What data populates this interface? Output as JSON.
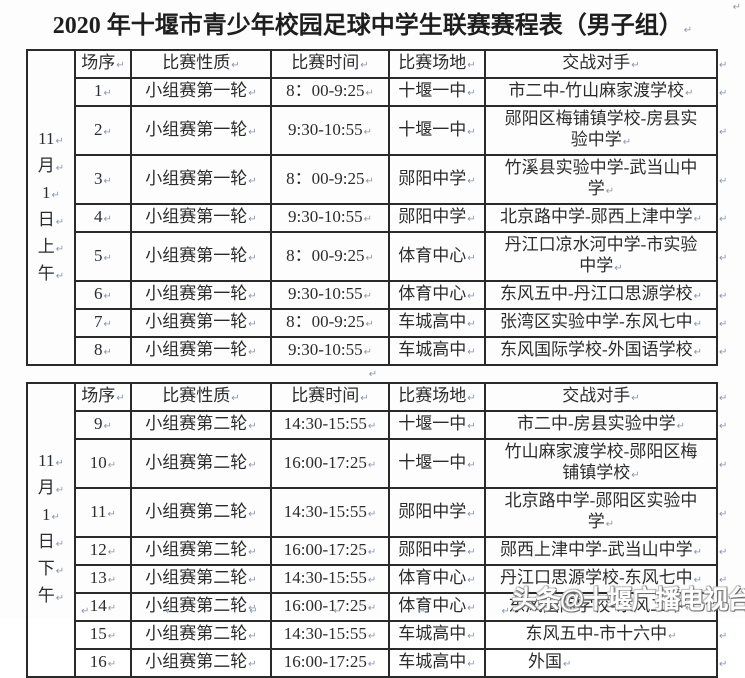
{
  "title": "2020 年十堰市青少年校园足球中学生联赛赛程表（男子组）",
  "marks": {
    "ret": "↵"
  },
  "columns": [
    "场序",
    "比赛性质",
    "比赛时间",
    "比赛场地",
    "交战对手"
  ],
  "watermark": "头条@十堰广播电视台",
  "tables": [
    {
      "name": "morning",
      "date_label_chars": [
        "11",
        "月",
        "1",
        "日",
        "上",
        "午"
      ],
      "rows": [
        {
          "no": "1",
          "nature": "小组赛第一轮",
          "time": "8：00-9:25",
          "venue": "十堰一中",
          "opponent_lines": [
            "市二中-竹山麻家渡学校"
          ]
        },
        {
          "no": "2",
          "nature": "小组赛第一轮",
          "time": "9:30-10:55",
          "venue": "十堰一中",
          "opponent_lines": [
            "郧阳区梅铺镇学校-房县实",
            "验中学"
          ]
        },
        {
          "no": "3",
          "nature": "小组赛第一轮",
          "time": "8：00-9:25",
          "venue": "郧阳中学",
          "opponent_lines": [
            "竹溪县实验中学-武当山中",
            "学"
          ]
        },
        {
          "no": "4",
          "nature": "小组赛第一轮",
          "time": "9:30-10:55",
          "venue": "郧阳中学",
          "opponent_lines": [
            "北京路中学-郧西上津中学"
          ]
        },
        {
          "no": "5",
          "nature": "小组赛第一轮",
          "time": "8：00-9:25",
          "venue": "体育中心",
          "opponent_lines": [
            "丹江口凉水河中学-市实验",
            "中学"
          ]
        },
        {
          "no": "6",
          "nature": "小组赛第一轮",
          "time": "9:30-10:55",
          "venue": "体育中心",
          "opponent_lines": [
            "东风五中-丹江口思源学校"
          ]
        },
        {
          "no": "7",
          "nature": "小组赛第一轮",
          "time": "8：00-9:25",
          "venue": "车城高中",
          "opponent_lines": [
            "张湾区实验中学-东风七中"
          ]
        },
        {
          "no": "8",
          "nature": "小组赛第一轮",
          "time": "9:30-10:55",
          "venue": "车城高中",
          "opponent_lines": [
            "东风国际学校-外国语学校"
          ]
        }
      ]
    },
    {
      "name": "afternoon",
      "date_label_chars": [
        "11",
        "月",
        "1",
        "日",
        "下",
        "午"
      ],
      "rows": [
        {
          "no": "9",
          "nature": "小组赛第二轮",
          "time": "14:30-15:55",
          "venue": "十堰一中",
          "opponent_lines": [
            "市二中-房县实验中学"
          ]
        },
        {
          "no": "10",
          "nature": "小组赛第二轮",
          "time": "16:00-17:25",
          "venue": "十堰一中",
          "opponent_lines": [
            "竹山麻家渡学校-郧阳区梅",
            "铺镇学校"
          ]
        },
        {
          "no": "11",
          "nature": "小组赛第二轮",
          "time": "14:30-15:55",
          "venue": "郧阳中学",
          "opponent_lines": [
            "北京路中学-郧阳区实验中",
            "学"
          ]
        },
        {
          "no": "12",
          "nature": "小组赛第二轮",
          "time": "16:00-17:25",
          "venue": "郧阳中学",
          "opponent_lines": [
            "郧西上津中学-武当山中学"
          ]
        },
        {
          "no": "13",
          "nature": "小组赛第二轮",
          "time": "14:30-15:55",
          "venue": "体育中心",
          "opponent_lines": [
            "丹江口思源学校-东风七中"
          ]
        },
        {
          "no": "14",
          "nature": "小组赛第二轮",
          "time": "16:00-17:25",
          "venue": "体育中心",
          "opponent_lines": [
            "东风国际学校-东风二中"
          ]
        },
        {
          "no": "15",
          "nature": "小组赛第二轮",
          "time": "14:30-15:55",
          "venue": "车城高中",
          "opponent_lines": [
            "东风五中-市十六中"
          ]
        },
        {
          "no": "16",
          "nature": "小组赛第二轮",
          "time": "16:00-17:25",
          "venue": "车城高中",
          "opponent_lines": [
            "外国"
          ],
          "opp_align": "left"
        }
      ]
    }
  ]
}
